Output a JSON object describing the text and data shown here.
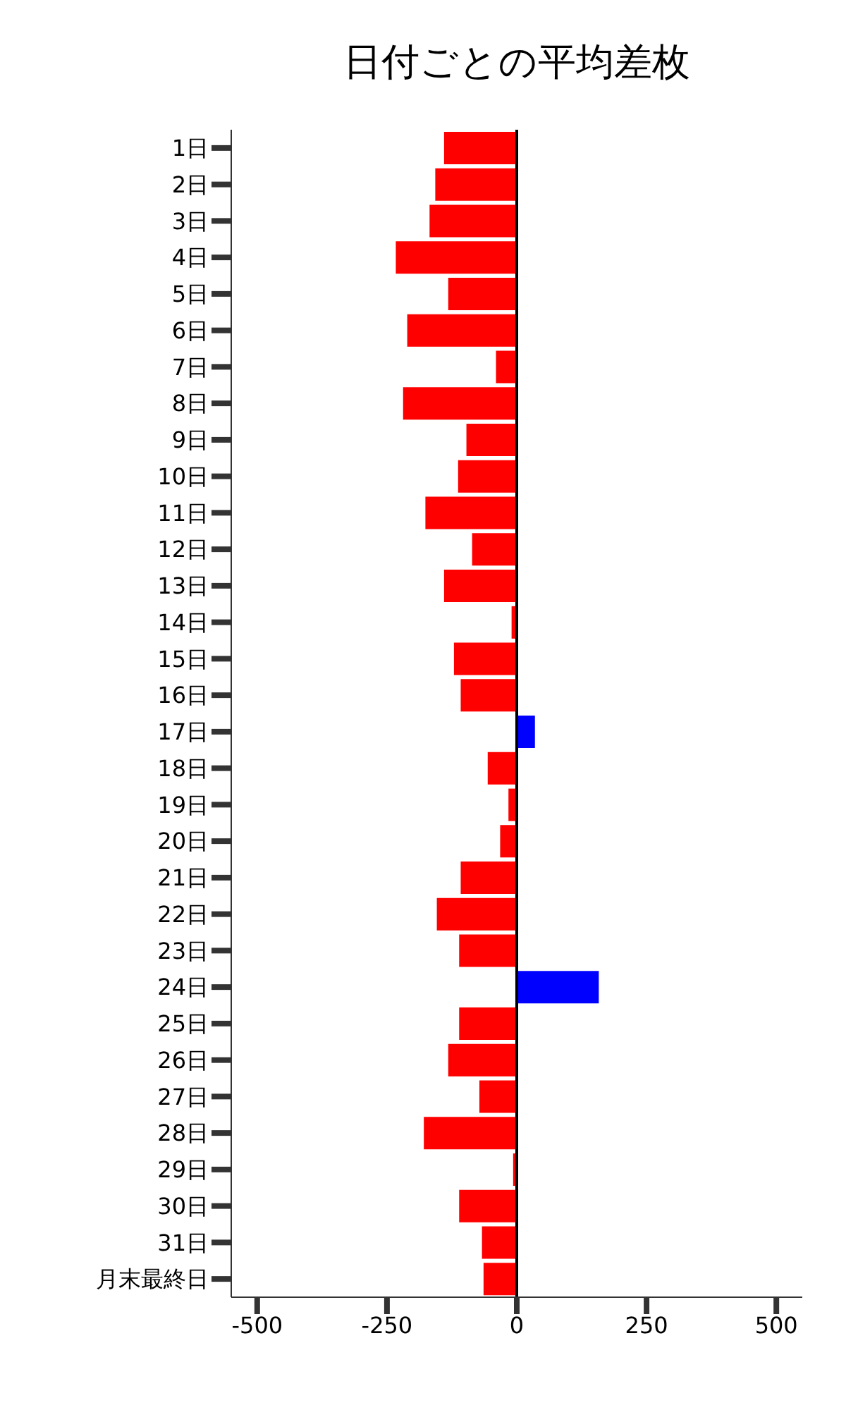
{
  "chart_data": {
    "type": "bar",
    "orientation": "horizontal",
    "title": "日付ごとの平均差枚",
    "categories": [
      "1日",
      "2日",
      "3日",
      "4日",
      "5日",
      "6日",
      "7日",
      "8日",
      "9日",
      "10日",
      "11日",
      "12日",
      "13日",
      "14日",
      "15日",
      "16日",
      "17日",
      "18日",
      "19日",
      "20日",
      "21日",
      "22日",
      "23日",
      "24日",
      "25日",
      "26日",
      "27日",
      "28日",
      "29日",
      "30日",
      "31日",
      "月末最終日"
    ],
    "values": [
      -140,
      -157,
      -168,
      -233,
      -132,
      -211,
      -40,
      -219,
      -97,
      -113,
      -176,
      -86,
      -140,
      -10,
      -121,
      -108,
      35,
      -56,
      -16,
      -32,
      -108,
      -154,
      -111,
      158,
      -111,
      -132,
      -72,
      -179,
      -7,
      -111,
      -67,
      -64
    ],
    "colors": [
      "#ff0000",
      "#ff0000",
      "#ff0000",
      "#ff0000",
      "#ff0000",
      "#ff0000",
      "#ff0000",
      "#ff0000",
      "#ff0000",
      "#ff0000",
      "#ff0000",
      "#ff0000",
      "#ff0000",
      "#ff0000",
      "#ff0000",
      "#ff0000",
      "#0000ff",
      "#ff0000",
      "#ff0000",
      "#ff0000",
      "#ff0000",
      "#ff0000",
      "#ff0000",
      "#0000ff",
      "#ff0000",
      "#ff0000",
      "#ff0000",
      "#ff0000",
      "#ff0000",
      "#ff0000",
      "#ff0000",
      "#ff0000"
    ],
    "xlim": [
      -550,
      550
    ],
    "xticks": [
      -500,
      -250,
      0,
      250,
      500
    ],
    "ref_lines": [
      {
        "axis": "x",
        "value": 0,
        "color": "#000000"
      }
    ],
    "grid": false
  }
}
